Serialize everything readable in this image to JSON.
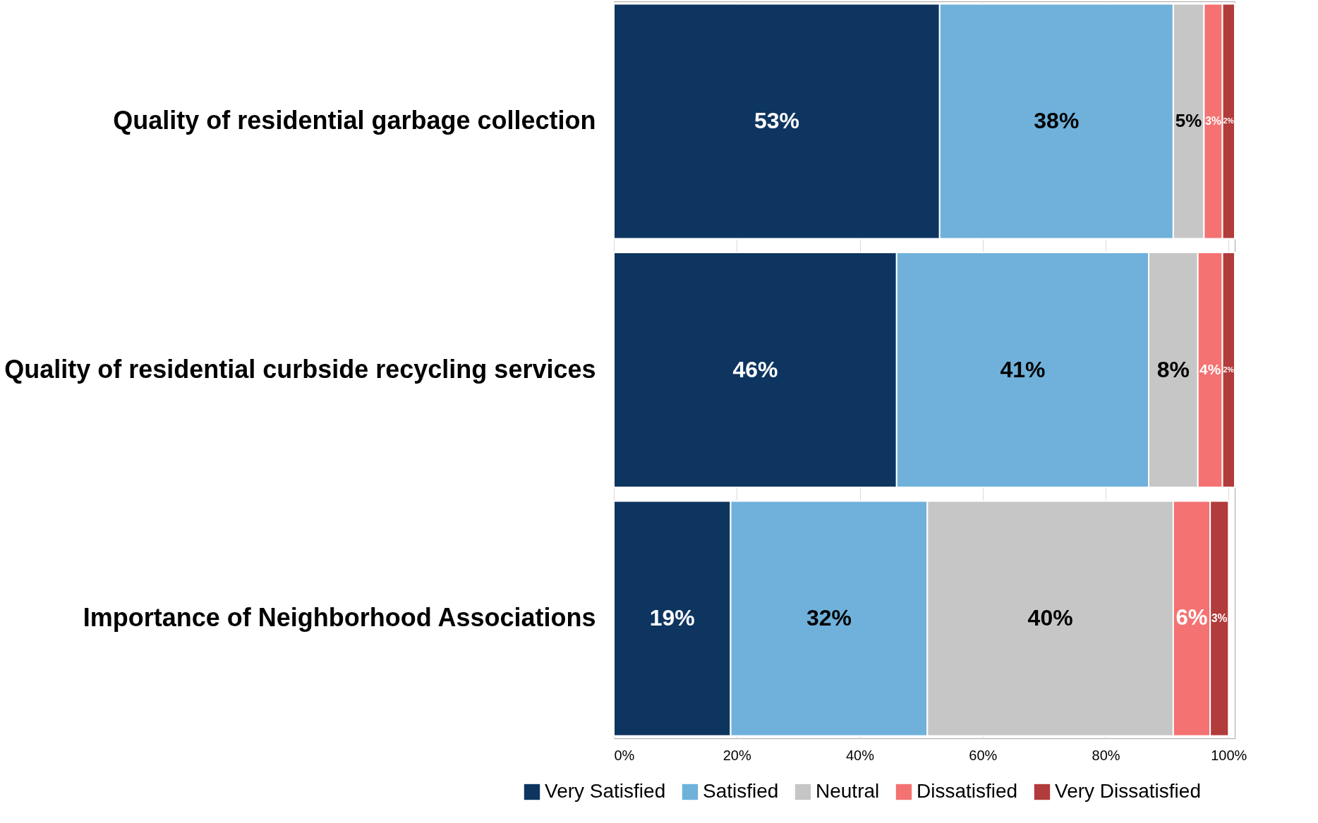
{
  "chart_data": {
    "type": "bar",
    "orientation": "horizontal",
    "stacked": true,
    "grid": "x",
    "legend": "bottom",
    "categories": [
      "Quality of residential garbage collection",
      "Quality of residential curbside recycling services",
      "Importance of Neighborhood Associations"
    ],
    "series": [
      {
        "name": "Very Satisfied",
        "color": "#0e3560",
        "values": [
          53,
          46,
          19
        ],
        "value_labels": [
          "53%",
          "46%",
          "19%"
        ]
      },
      {
        "name": "Satisfied",
        "color": "#6fb1db",
        "values": [
          38,
          41,
          32
        ],
        "value_labels": [
          "38%",
          "41%",
          "32%"
        ]
      },
      {
        "name": "Neutral",
        "color": "#c6c6c6",
        "values": [
          5,
          8,
          40
        ],
        "value_labels": [
          "5%",
          "8%",
          "40%"
        ]
      },
      {
        "name": "Dissatisfied",
        "color": "#f47272",
        "values": [
          3,
          4,
          6
        ],
        "value_labels": [
          "3%",
          "4%",
          "6%"
        ]
      },
      {
        "name": "Very Dissatisfied",
        "color": "#b23b3b",
        "values": [
          2,
          2,
          3
        ],
        "value_labels": [
          "2%",
          "2%",
          "3%"
        ]
      }
    ],
    "xlim": [
      0,
      101
    ],
    "xticks": [
      {
        "value": 0,
        "label": "0%"
      },
      {
        "value": 20,
        "label": "20%"
      },
      {
        "value": 40,
        "label": "40%"
      },
      {
        "value": 60,
        "label": "60%"
      },
      {
        "value": 80,
        "label": "80%"
      },
      {
        "value": 100,
        "label": "100%"
      }
    ]
  }
}
